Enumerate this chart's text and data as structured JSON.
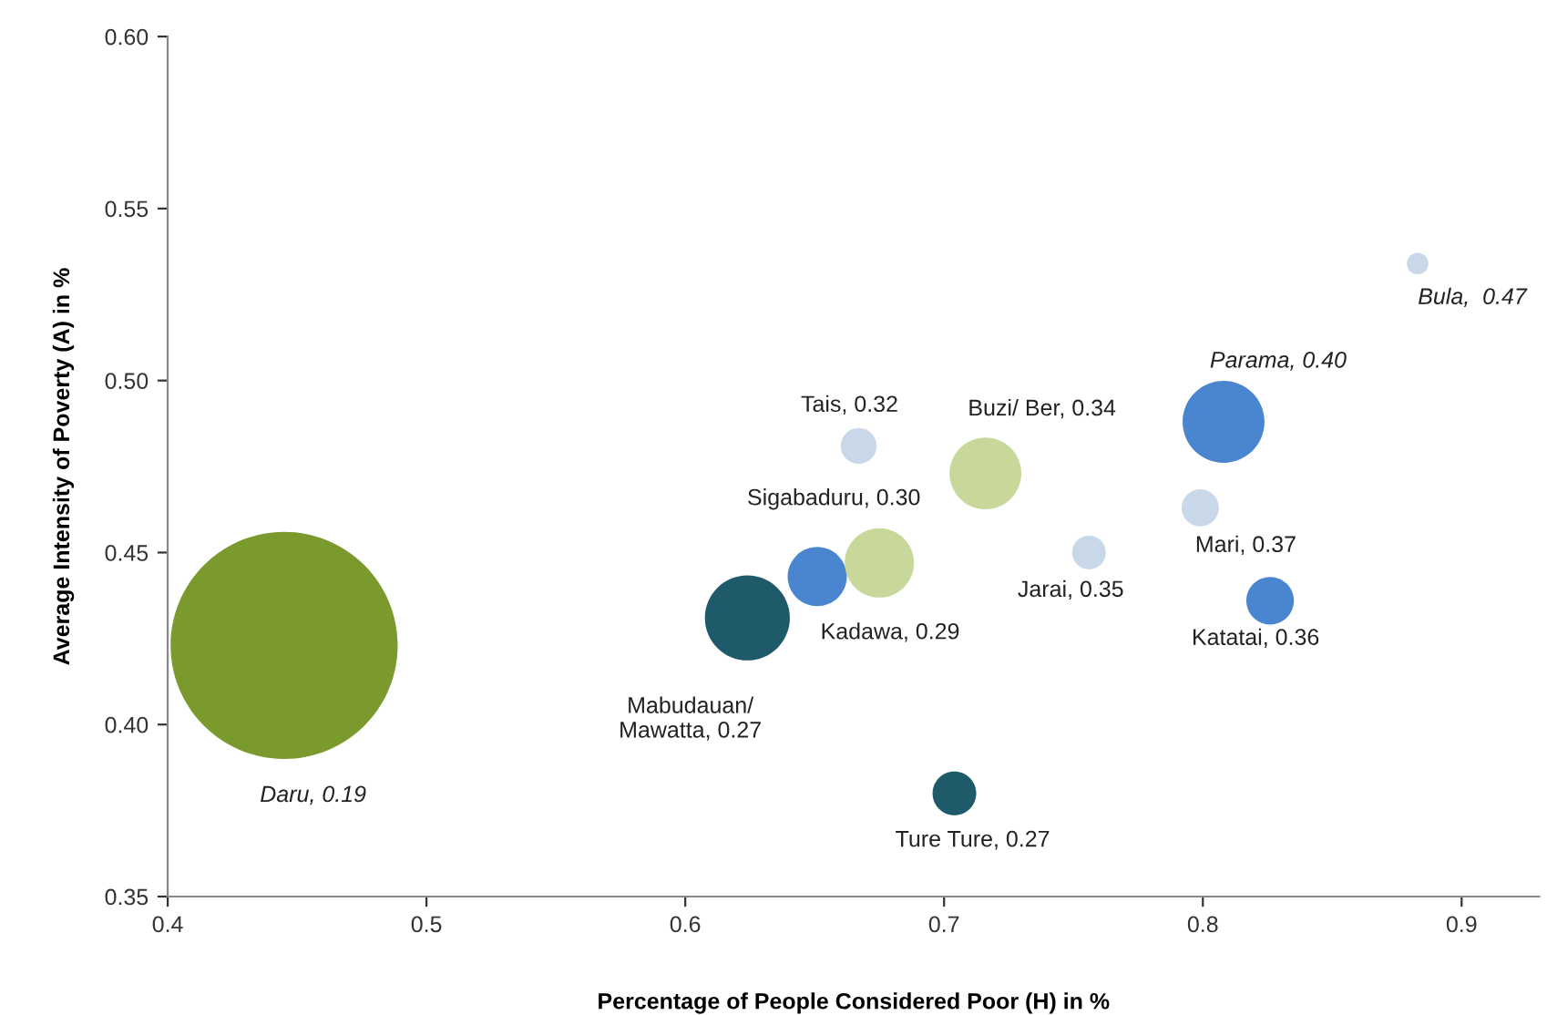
{
  "chart_data": {
    "type": "bubble",
    "xlabel": "Percentage of People Considered Poor (H) in %",
    "ylabel": "Average Intensity of Poverty (A) in %",
    "xlim": [
      0.4,
      0.93
    ],
    "xticks": [
      0.4,
      0.5,
      0.6,
      0.7,
      0.8,
      0.9
    ],
    "ylim": [
      0.35,
      0.6
    ],
    "yticks": [
      {
        "value": 0.35,
        "label": "0.35"
      },
      {
        "value": 0.4,
        "label": "0.40"
      },
      {
        "value": 0.45,
        "label": "0.45"
      },
      {
        "value": 0.5,
        "label": "0.50"
      },
      {
        "value": 0.55,
        "label": "0.55"
      },
      {
        "value": 0.6,
        "label": "0.60"
      }
    ],
    "grid": false,
    "x": [
      0.445,
      0.624,
      0.651,
      0.675,
      0.667,
      0.716,
      0.756,
      0.704,
      0.808,
      0.799,
      0.826,
      0.883
    ],
    "values": [
      0.423,
      0.431,
      0.443,
      0.447,
      0.481,
      0.473,
      0.45,
      0.38,
      0.488,
      0.463,
      0.436,
      0.534
    ],
    "sizes": [
      1,
      0.14,
      0.068,
      0.093,
      0.025,
      0.1,
      0.022,
      0.037,
      0.13,
      0.027,
      0.044,
      0.009
    ],
    "colors": [
      "#7a9a2e",
      "#1e5a6a",
      "#4a86d0",
      "#c8d89a",
      "#c8d8e8",
      "#c8d89a",
      "#c8d8e8",
      "#1e5a6a",
      "#4a86d0",
      "#c8d8e8",
      "#4a86d0",
      "#c8d8e8"
    ],
    "annotations": [
      "Daru, 0.19",
      "Mabudauan/\nMawatta, 0.27",
      {
        "text": "Kadawa, 0.29",
        "x": 0.651,
        "y": 0.443
      },
      {
        "text": "Sigabaduru, 0.30",
        "x": 0.675,
        "y": 0.447
      },
      {
        "text": "Tais, 0.32",
        "x": 0.667,
        "y": 0.481
      },
      {
        "text": "Buzi/ Ber, 0.34",
        "x": 0.716,
        "y": 0.473
      },
      {
        "text": "Jarai, 0.35",
        "x": 0.756,
        "y": 0.45
      },
      {
        "text": "Ture Ture, 0.27",
        "x": 0.704,
        "y": 0.38
      },
      {
        "text": "Parama, 0.40",
        "x": 0.808,
        "y": 0.488
      },
      {
        "text": "Mari, 0.37",
        "x": 0.799,
        "y": 0.463
      },
      {
        "text": "Katatai, 0.36",
        "x": 0.826,
        "y": 0.436
      },
      {
        "text": "Bula,  0.47",
        "x": 0.883,
        "y": 0.534
      }
    ]
  }
}
